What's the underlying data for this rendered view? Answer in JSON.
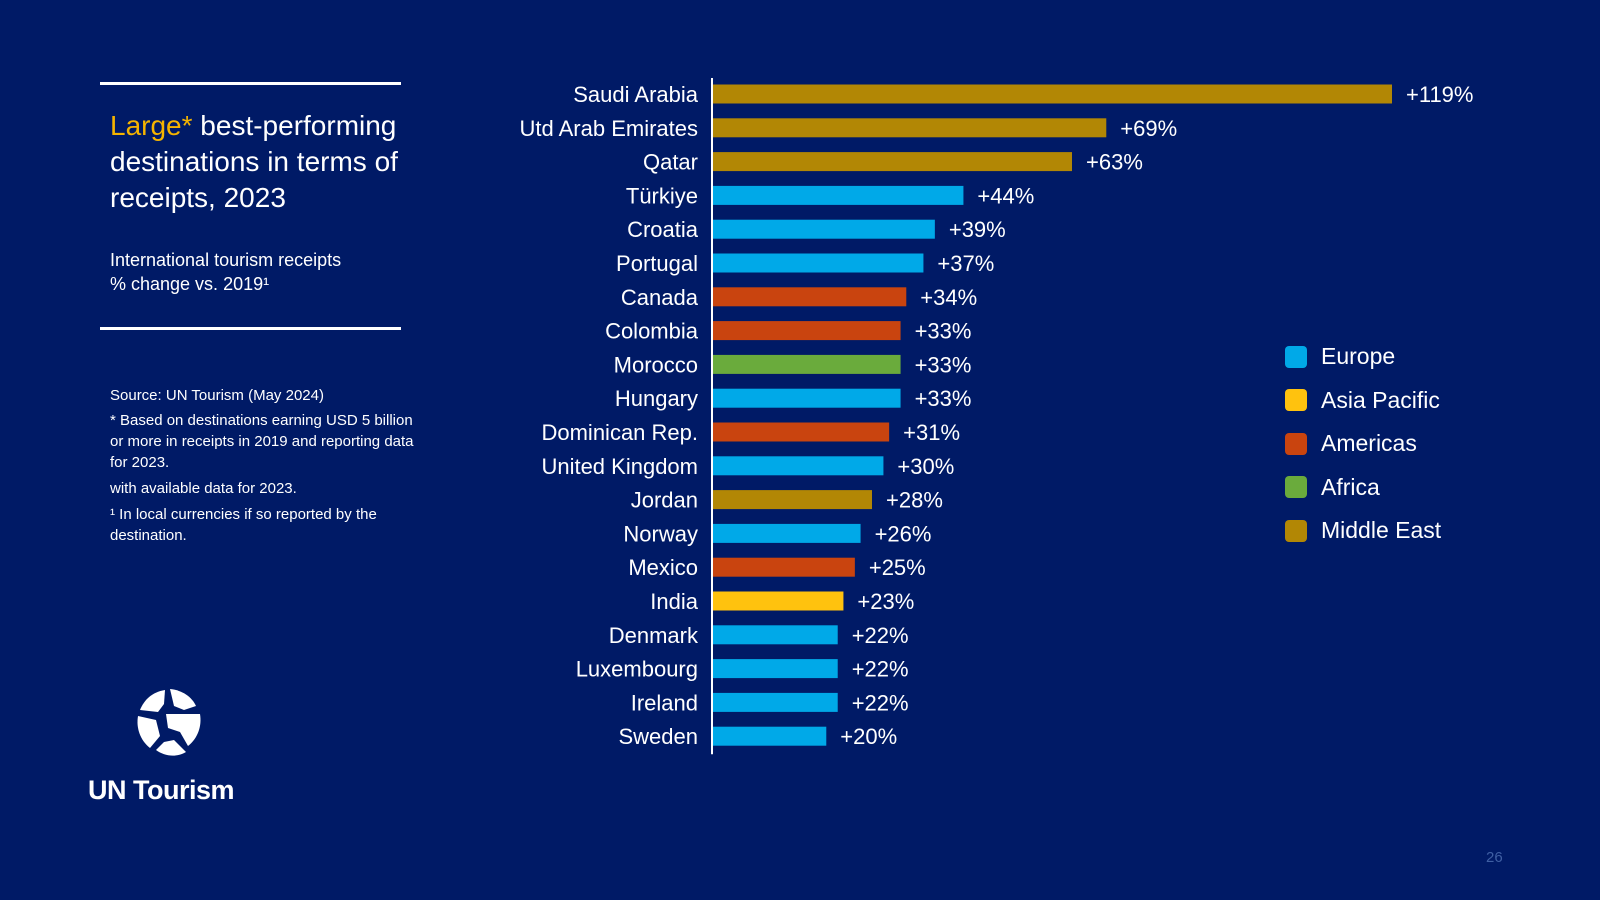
{
  "title": {
    "highlight": "Large*",
    "rest": " best-performing destinations in terms of receipts, 2023"
  },
  "subtitle": {
    "line1": "International tourism receipts",
    "line2": "% change vs. 2019¹"
  },
  "notes": {
    "source": "Source: UN Tourism (May 2024)",
    "footnote1": "* Based on destinations earning USD 5 billion or more in receipts in 2019 and reporting data for 2023.",
    "footnote2": " with available data for 2023.",
    "footnote3": "¹ In local currencies if so reported by the destination."
  },
  "logo": {
    "name": "UN Tourism",
    "icon": "un-tourism-globe-icon"
  },
  "page_number": "26",
  "colors": {
    "background": "#001a66",
    "Europe": "#00a9e8",
    "Asia Pacific": "#ffc20e",
    "Americas": "#c9440f",
    "Africa": "#6aab3c",
    "Middle East": "#b28705"
  },
  "chart_data": {
    "type": "bar",
    "orientation": "horizontal",
    "title": "",
    "xlabel": "",
    "ylabel": "",
    "value_format": "+{v}%",
    "xlim": [
      0,
      119
    ],
    "categories": [
      "Saudi Arabia",
      "Utd Arab Emirates",
      "Qatar",
      "Türkiye",
      "Croatia",
      "Portugal",
      "Canada",
      "Colombia",
      "Morocco",
      "Hungary",
      "Dominican Rep.",
      "United Kingdom",
      "Jordan",
      "Norway",
      "Mexico",
      "India",
      "Denmark",
      "Luxembourg",
      "Ireland",
      "Sweden"
    ],
    "values": [
      119,
      69,
      63,
      44,
      39,
      37,
      34,
      33,
      33,
      33,
      31,
      30,
      28,
      26,
      25,
      23,
      22,
      22,
      22,
      20
    ],
    "data_labels": [
      "+119%",
      "+69%",
      "+63%",
      "+44%",
      "+39%",
      "+37%",
      "+34%",
      "+33%",
      "+33%",
      "+33%",
      "+31%",
      "+30%",
      "+28%",
      "+26%",
      "+25%",
      "+23%",
      "+22%",
      "+22%",
      "+22%",
      "+20%"
    ],
    "regions": [
      "Middle East",
      "Middle East",
      "Middle East",
      "Europe",
      "Europe",
      "Europe",
      "Americas",
      "Americas",
      "Africa",
      "Europe",
      "Americas",
      "Europe",
      "Middle East",
      "Europe",
      "Americas",
      "Asia Pacific",
      "Europe",
      "Europe",
      "Europe",
      "Europe"
    ],
    "legend": {
      "position": "right",
      "entries": [
        {
          "label": "Europe",
          "color": "#00a9e8"
        },
        {
          "label": "Asia Pacific",
          "color": "#ffc20e"
        },
        {
          "label": "Americas",
          "color": "#c9440f"
        },
        {
          "label": "Africa",
          "color": "#6aab3c"
        },
        {
          "label": "Middle East",
          "color": "#b28705"
        }
      ]
    },
    "grid": false
  }
}
